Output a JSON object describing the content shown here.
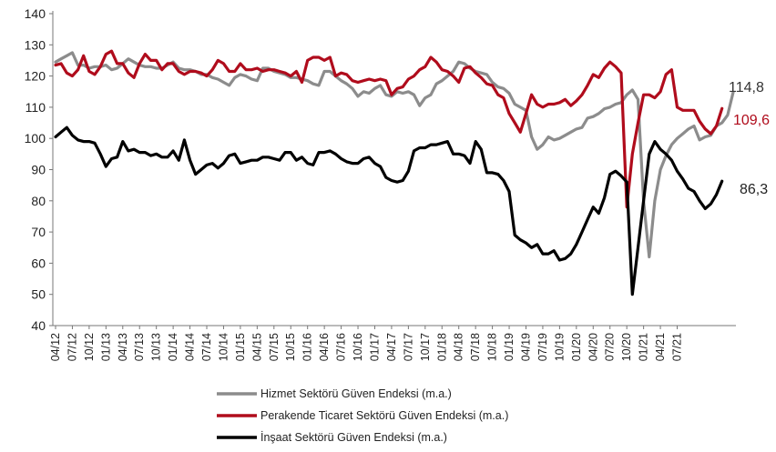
{
  "chart_data": {
    "type": "line",
    "ylim": [
      40,
      140
    ],
    "yticks": [
      40,
      50,
      60,
      70,
      80,
      90,
      100,
      110,
      120,
      130,
      140
    ],
    "x_ticks": [
      "04/12",
      "07/12",
      "10/12",
      "01/13",
      "04/13",
      "07/13",
      "10/13",
      "01/14",
      "04/14",
      "07/14",
      "10/14",
      "01/15",
      "04/15",
      "07/15",
      "10/15",
      "01/16",
      "04/16",
      "07/16",
      "10/16",
      "01/17",
      "04/17",
      "07/17",
      "10/17",
      "01/18",
      "04/18",
      "07/18",
      "10/18",
      "01/19",
      "04/19",
      "07/19",
      "10/19",
      "01/20",
      "04/20",
      "07/20",
      "10/20",
      "01/21",
      "04/21",
      "07/21"
    ],
    "grid": false,
    "legend_position": "bottom-left",
    "series": [
      {
        "name": "Hizmet Sektörü Güven Endeksi (m.a.)",
        "color": "#8c8c8c",
        "end_label": "114,8",
        "values": [
          124.5,
          125.5,
          126.5,
          127.5,
          123.5,
          123.5,
          122.5,
          123,
          123,
          123.5,
          122,
          122.5,
          124,
          125.5,
          124.5,
          123.5,
          123,
          123,
          122.5,
          122.5,
          123.5,
          124.5,
          122.5,
          122,
          122,
          121.5,
          120.5,
          120.5,
          119.5,
          119,
          118,
          117,
          119.5,
          120.5,
          120,
          119,
          118.5,
          122.5,
          122.5,
          121.5,
          121,
          120.5,
          119.5,
          119.5,
          119,
          118.5,
          117.5,
          117,
          121.5,
          121.5,
          120,
          118.5,
          117.5,
          116,
          113.5,
          115,
          114.5,
          116,
          117,
          114,
          113.5,
          115,
          114.5,
          115,
          114,
          110.5,
          113,
          114,
          117.5,
          118.5,
          120,
          121.5,
          124.5,
          124,
          122.5,
          121.5,
          121,
          120.5,
          118,
          116.5,
          116,
          114.5,
          111,
          110,
          109,
          100.5,
          96.5,
          98,
          100.5,
          99.5,
          100,
          101,
          102,
          103,
          103.5,
          106.5,
          107,
          108,
          109.5,
          110,
          111,
          111.5,
          114,
          115.5,
          112.5,
          80,
          62,
          80,
          90,
          94.5,
          98,
          100,
          101.5,
          103,
          104,
          99.5,
          100.5,
          101,
          104,
          105,
          107.5,
          114.8
        ]
      },
      {
        "name": "Perakende Ticaret Sektörü Güven Endeksi (m.a.)",
        "color": "#b00c1c",
        "end_label": "109,6",
        "values": [
          123.5,
          124,
          121,
          120,
          122,
          126.5,
          121.5,
          120.5,
          123,
          127,
          128,
          124,
          124,
          121,
          119.5,
          124,
          127,
          125,
          125,
          122,
          124,
          124,
          121.5,
          120.5,
          121.5,
          121.5,
          121,
          120,
          122,
          125,
          124,
          121.5,
          121.5,
          124,
          122,
          122,
          122.5,
          121.5,
          122,
          122,
          121.5,
          121,
          120,
          121.5,
          118,
          125,
          126,
          126,
          125,
          126,
          120,
          121,
          120.5,
          118.5,
          118,
          118.5,
          119,
          118.5,
          119,
          118.5,
          114,
          116,
          116.5,
          119,
          120,
          122,
          123,
          126,
          124.5,
          122,
          121.5,
          120,
          118,
          122.5,
          123,
          121,
          119.5,
          117.5,
          117,
          114,
          113,
          108,
          105,
          102,
          108,
          114,
          111,
          110,
          111,
          111,
          111.5,
          112.5,
          110.5,
          112,
          114,
          117,
          120.5,
          119.5,
          122.5,
          124.5,
          123,
          121,
          78,
          95,
          105,
          114,
          114,
          113,
          115,
          120.5,
          122,
          110,
          109,
          109,
          109,
          105.5,
          103,
          101.5,
          104,
          109.6
        ]
      },
      {
        "name": "İnşaat Sektörü Güven Endeksi (m.a.)",
        "color": "#000000",
        "end_label": "86,3",
        "values": [
          100.5,
          102,
          103.5,
          101,
          99.5,
          99,
          99,
          98.5,
          95,
          91,
          93.5,
          94,
          99,
          96,
          96.5,
          95.5,
          95.5,
          94.5,
          95,
          94,
          94,
          96,
          93,
          99.5,
          93,
          88.5,
          90,
          91.5,
          92,
          90.5,
          92,
          94.5,
          95,
          92,
          92.5,
          93,
          93,
          94,
          94,
          93.5,
          93,
          95.5,
          95.5,
          93,
          94,
          92,
          91.5,
          95.5,
          95.5,
          96,
          95,
          93.5,
          92.5,
          92,
          92,
          93.5,
          94,
          92,
          91,
          87.5,
          86.5,
          86,
          86.5,
          89.5,
          96,
          97,
          97,
          98,
          98,
          98.5,
          99,
          95,
          95,
          94.5,
          92,
          99,
          96.5,
          89,
          89,
          88.5,
          86.5,
          83,
          69,
          67.5,
          66.5,
          65,
          66,
          63,
          63,
          64,
          61,
          61.5,
          63,
          66,
          70,
          74,
          78,
          76,
          81,
          88.5,
          89.5,
          88,
          86,
          50,
          65,
          80,
          95,
          99,
          96.5,
          95,
          93,
          89.5,
          87,
          84,
          83,
          80,
          77.5,
          79,
          82,
          86.3
        ]
      }
    ]
  }
}
